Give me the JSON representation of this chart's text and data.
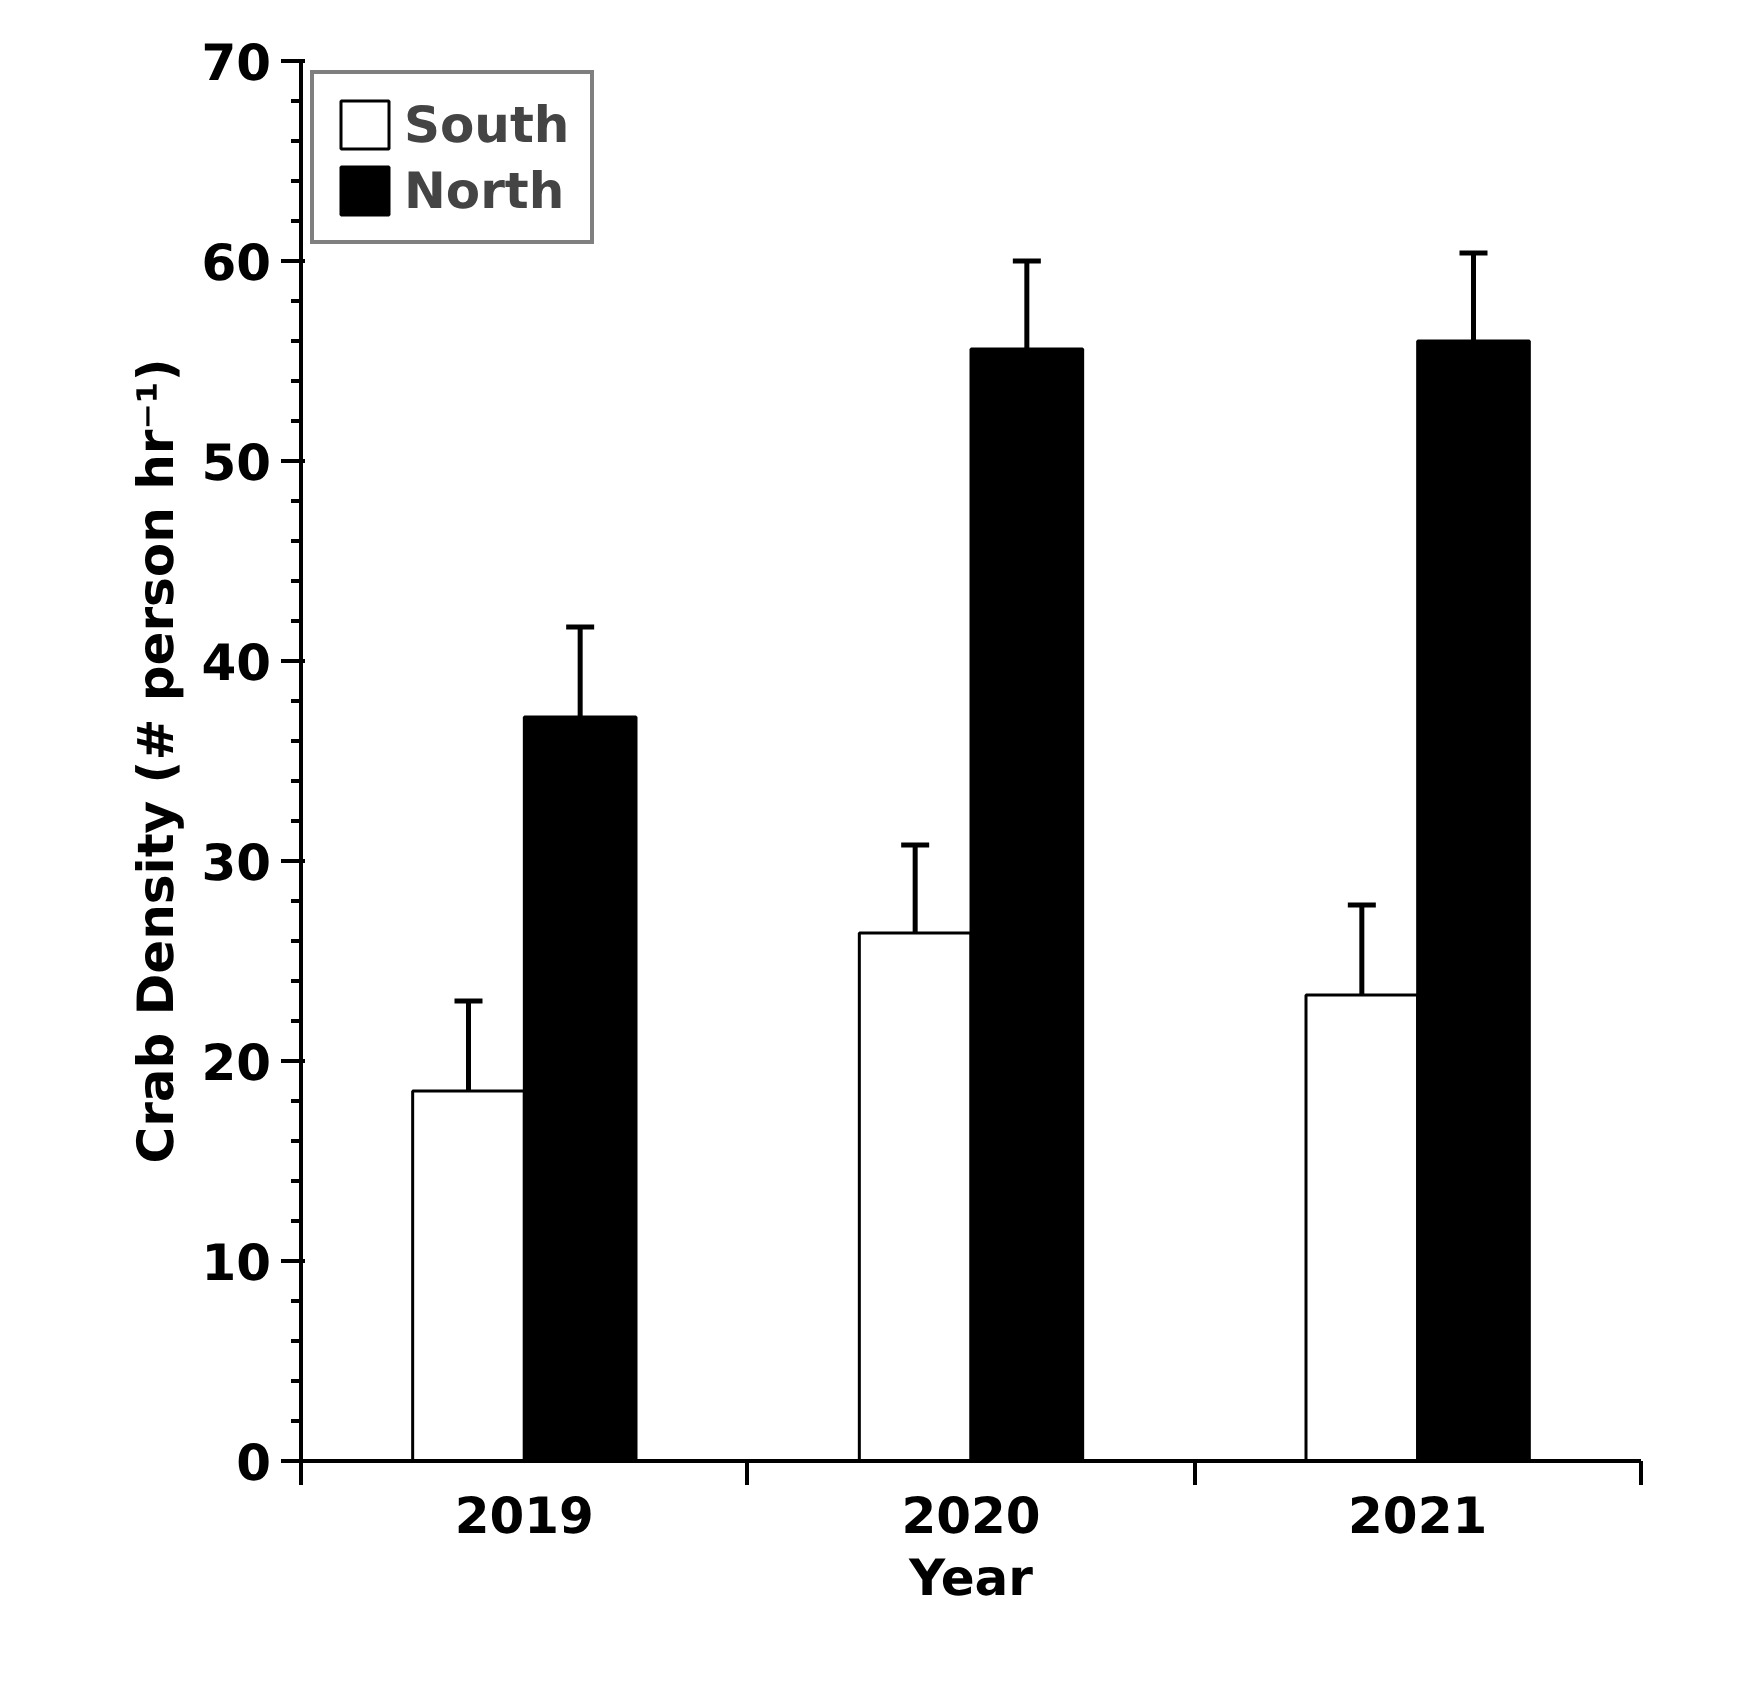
{
  "chart_data": {
    "type": "bar",
    "xlabel": "Year",
    "ylabel": "Crab Density (# person hr⁻¹)",
    "categories": [
      "2019",
      "2020",
      "2021"
    ],
    "series": [
      {
        "name": "South",
        "color": "#ffffff",
        "values": [
          18.5,
          26.4,
          23.3
        ],
        "errors": [
          4.5,
          4.4,
          4.5
        ]
      },
      {
        "name": "North",
        "color": "#000000",
        "values": [
          37.2,
          55.6,
          56.0
        ],
        "errors": [
          4.5,
          4.4,
          4.4
        ]
      }
    ],
    "ylim": [
      0,
      70
    ],
    "yticks": [
      0,
      10,
      20,
      30,
      40,
      50,
      60,
      70
    ],
    "grid": false,
    "legend": "top left"
  }
}
